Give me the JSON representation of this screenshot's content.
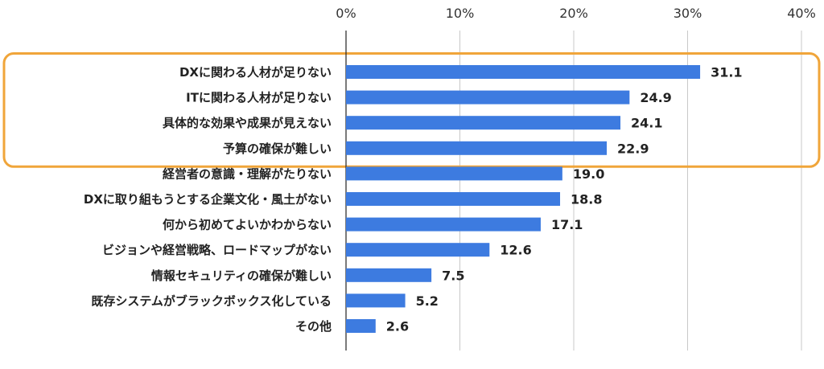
{
  "chart_data": {
    "type": "bar",
    "orientation": "horizontal",
    "categories": [
      "DXに関わる人材が足りない",
      "ITに関わる人材が足りない",
      "具体的な効果や成果が見えない",
      "予算の確保が難しい",
      "経営者の意識・理解がたりない",
      "DXに取り組もうとする企業文化・風土がない",
      "何から初めてよいかわからない",
      "ビジョンや経営戦略、ロードマップがない",
      "情報セキュリティの確保が難しい",
      "既存システムがブラックボックス化している",
      "その他"
    ],
    "values": [
      31.1,
      24.9,
      24.1,
      22.9,
      19.0,
      18.8,
      17.1,
      12.6,
      7.5,
      5.2,
      2.6
    ],
    "value_labels": [
      "31.1",
      "24.9",
      "24.1",
      "22.9",
      "19.0",
      "18.8",
      "17.1",
      "12.6",
      "7.5",
      "5.2",
      "2.6"
    ],
    "xlim": [
      0,
      40
    ],
    "x_ticks": [
      0,
      10,
      20,
      30,
      40
    ],
    "x_tick_labels": [
      "0%",
      "10%",
      "20%",
      "30%",
      "40%"
    ],
    "x_axis_position": "top",
    "grid": true,
    "highlight": {
      "first_index": 0,
      "last_index": 3
    },
    "colors": {
      "bar": "#3d7be0",
      "highlight_border": "#f0a53a",
      "grid": "#c8c8c8",
      "axis": "#222222"
    }
  }
}
